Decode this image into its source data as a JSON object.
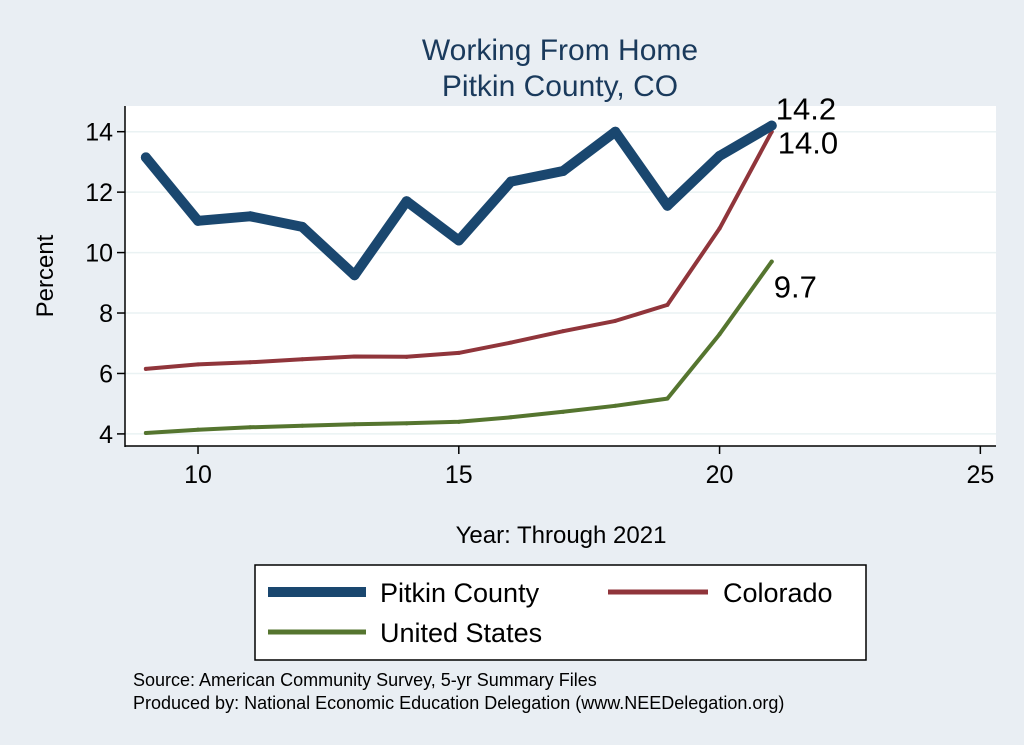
{
  "chart_data": {
    "type": "line",
    "title": [
      "Working From Home",
      "Pitkin County, CO"
    ],
    "xlabel": "Year: Through 2021",
    "ylabel": "Percent",
    "xlim": [
      8.6,
      25.3
    ],
    "ylim": [
      3.6,
      14.85
    ],
    "xticks": [
      10,
      15,
      20,
      25
    ],
    "yticks": [
      4,
      6,
      8,
      10,
      12,
      14
    ],
    "grid": true,
    "legend_position": "bottom",
    "series": [
      {
        "name": "Pitkin County",
        "color": "#1a476f",
        "width": 10,
        "x": [
          9,
          10,
          11,
          12,
          13,
          14,
          15,
          16,
          17,
          18,
          19,
          20,
          21
        ],
        "y": [
          13.15,
          11.05,
          11.2,
          10.85,
          9.25,
          11.7,
          10.4,
          12.35,
          12.7,
          14.0,
          11.55,
          13.2,
          14.2
        ],
        "end_label": "14.2"
      },
      {
        "name": "Colorado",
        "color": "#90353b",
        "width": 4,
        "x": [
          9,
          10,
          11,
          12,
          13,
          14,
          15,
          16,
          17,
          18,
          19,
          20,
          21
        ],
        "y": [
          6.15,
          6.3,
          6.37,
          6.47,
          6.56,
          6.55,
          6.68,
          7.02,
          7.4,
          7.74,
          8.27,
          10.8,
          14.0
        ],
        "end_label": "14.0"
      },
      {
        "name": "United States",
        "color": "#55752f",
        "width": 4,
        "x": [
          9,
          10,
          11,
          12,
          13,
          14,
          15,
          16,
          17,
          18,
          19,
          20,
          21
        ],
        "y": [
          4.03,
          4.14,
          4.22,
          4.27,
          4.32,
          4.35,
          4.4,
          4.55,
          4.73,
          4.93,
          5.17,
          7.3,
          9.7
        ],
        "end_label": "9.7"
      }
    ],
    "source_lines": [
      "Source: American Community Survey, 5-yr Summary Files",
      "Produced by: National Economic Education Delegation (www.NEEDelegation.org)"
    ]
  }
}
